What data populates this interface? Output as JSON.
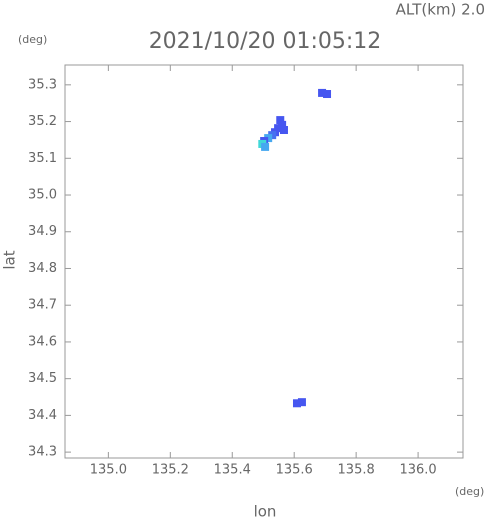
{
  "chart_data": {
    "type": "scatter",
    "title": "2021/10/20 01:05:12",
    "subtitle": "ALT(km) 2.0",
    "y_unit": "(deg)",
    "x_unit": "(deg)",
    "xlabel": "lon",
    "ylabel": "lat",
    "xlim": [
      134.86,
      136.145
    ],
    "ylim": [
      34.284,
      35.354
    ],
    "xticks": [
      {
        "value": 135,
        "label": "135.0"
      },
      135.2,
      135.4,
      135.6,
      135.8,
      {
        "value": 136,
        "label": "136.0"
      }
    ],
    "yticks": [
      34.3,
      34.4,
      34.5,
      34.6,
      34.7,
      34.8,
      34.9,
      {
        "value": 35,
        "label": "35.0"
      },
      35.1,
      35.2,
      35.3
    ],
    "x": [
      135.555,
      135.561,
      135.548,
      135.538,
      135.529,
      135.516,
      135.503,
      135.567,
      135.497,
      135.506,
      135.69,
      135.706,
      135.609,
      135.625
    ],
    "y": [
      35.204,
      35.191,
      35.182,
      35.171,
      35.163,
      35.155,
      35.147,
      35.177,
      35.139,
      35.131,
      35.278,
      35.275,
      34.433,
      34.436
    ],
    "colors": [
      "#4656f0",
      "#4656f0",
      "#4656f0",
      "#4656f0",
      "#4670f0",
      "#46a8f0",
      "#4656f0",
      "#4656f0",
      "#40d8d8",
      "#46a8f0",
      "#4656f0",
      "#4656f0",
      "#4656f0",
      "#4656f0"
    ]
  }
}
